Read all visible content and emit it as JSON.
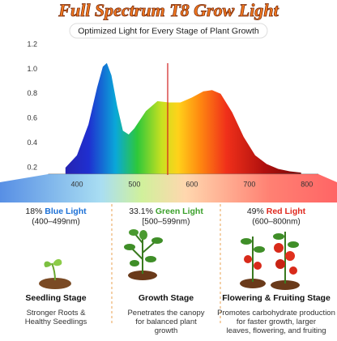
{
  "title": "Full Spectrum T8 Grow Light",
  "subtitle": "Optimized Light for Every Stage of Plant Growth",
  "chart_data": {
    "type": "area",
    "x": [
      380,
      400,
      420,
      435,
      445,
      452,
      460,
      470,
      480,
      490,
      500,
      520,
      540,
      560,
      580,
      600,
      620,
      635,
      650,
      670,
      690,
      710,
      730,
      750,
      770,
      790
    ],
    "values": [
      0.2,
      0.3,
      0.55,
      0.85,
      1.02,
      1.05,
      0.95,
      0.7,
      0.5,
      0.47,
      0.52,
      0.66,
      0.74,
      0.73,
      0.73,
      0.77,
      0.82,
      0.83,
      0.8,
      0.65,
      0.45,
      0.3,
      0.23,
      0.19,
      0.17,
      0.16
    ],
    "xlim": [
      350,
      820
    ],
    "ylim": [
      0.15,
      1.25
    ],
    "xticks": [
      400,
      500,
      600,
      700,
      800
    ],
    "yticks": [
      0.2,
      0.4,
      0.6,
      0.8,
      {
        "value": 1.0,
        "label": "1.0"
      },
      1.2
    ]
  },
  "columns": [
    {
      "percent": "18%",
      "light": "Blue Light",
      "range": "(400–499nm)",
      "color": "#1a6fd6",
      "stage": "Seedling Stage",
      "description": "Stronger Roots & Healthy Seedlings"
    },
    {
      "percent": "33.1%",
      "light": "Green Light",
      "range": "[500–599nm)",
      "color": "#3aa02a",
      "stage": "Growth Stage",
      "description": "Penetrates the canopy for balanced plant growth"
    },
    {
      "percent": "49%",
      "light": "Red Light",
      "range": "(600–800nm)",
      "color": "#e0281e",
      "stage": "Flowering & Fruiting Stage",
      "description": "Promotes carbohydrate production for faster growth, larger leaves, flowering, and fruiting"
    }
  ]
}
